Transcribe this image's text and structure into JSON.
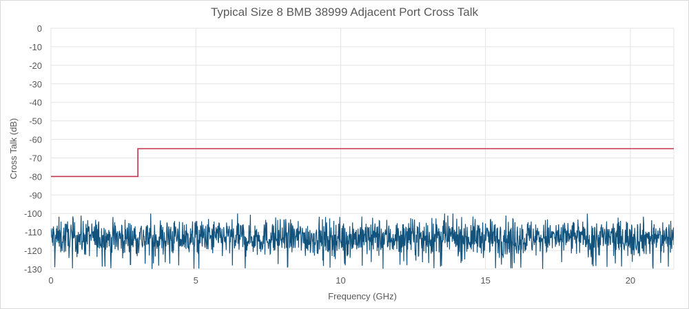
{
  "chart_data": {
    "type": "line",
    "title": "Typical Size 8 BMB 38999 Adjacent Port Cross Talk",
    "xlabel": "Frequency (GHz)",
    "ylabel": "Cross Talk (dB)",
    "xlim": [
      0,
      21.5
    ],
    "ylim": [
      -130,
      0
    ],
    "xticks": [
      0,
      5,
      10,
      15,
      20
    ],
    "xtick_labels": [
      "0",
      "5",
      "10",
      "15",
      "20"
    ],
    "yticks": [
      0,
      -10,
      -20,
      -30,
      -40,
      -50,
      -60,
      -70,
      -80,
      -90,
      -100,
      -110,
      -120,
      -130
    ],
    "ytick_labels": [
      "0",
      "-10",
      "-20",
      "-30",
      "-40",
      "-50",
      "-60",
      "-70",
      "-80",
      "-90",
      "-100",
      "-110",
      "-120",
      "-130"
    ],
    "grid": true,
    "legend": "none",
    "series": [
      {
        "color": "#c0344c",
        "x": [
          0,
          3,
          3,
          21.5
        ],
        "y": [
          -80,
          -80,
          -65,
          -65
        ]
      },
      {
        "color": "#12537e",
        "x": [
          0,
          21.5
        ],
        "y_mean": -113,
        "y_range": [
          -130,
          -100
        ],
        "points": 1800,
        "noisy": true
      }
    ]
  },
  "colors": {
    "limit_line": "#c0344c",
    "measured_line": "#12537e",
    "grid": "#e3e3e3",
    "text": "#595959"
  }
}
